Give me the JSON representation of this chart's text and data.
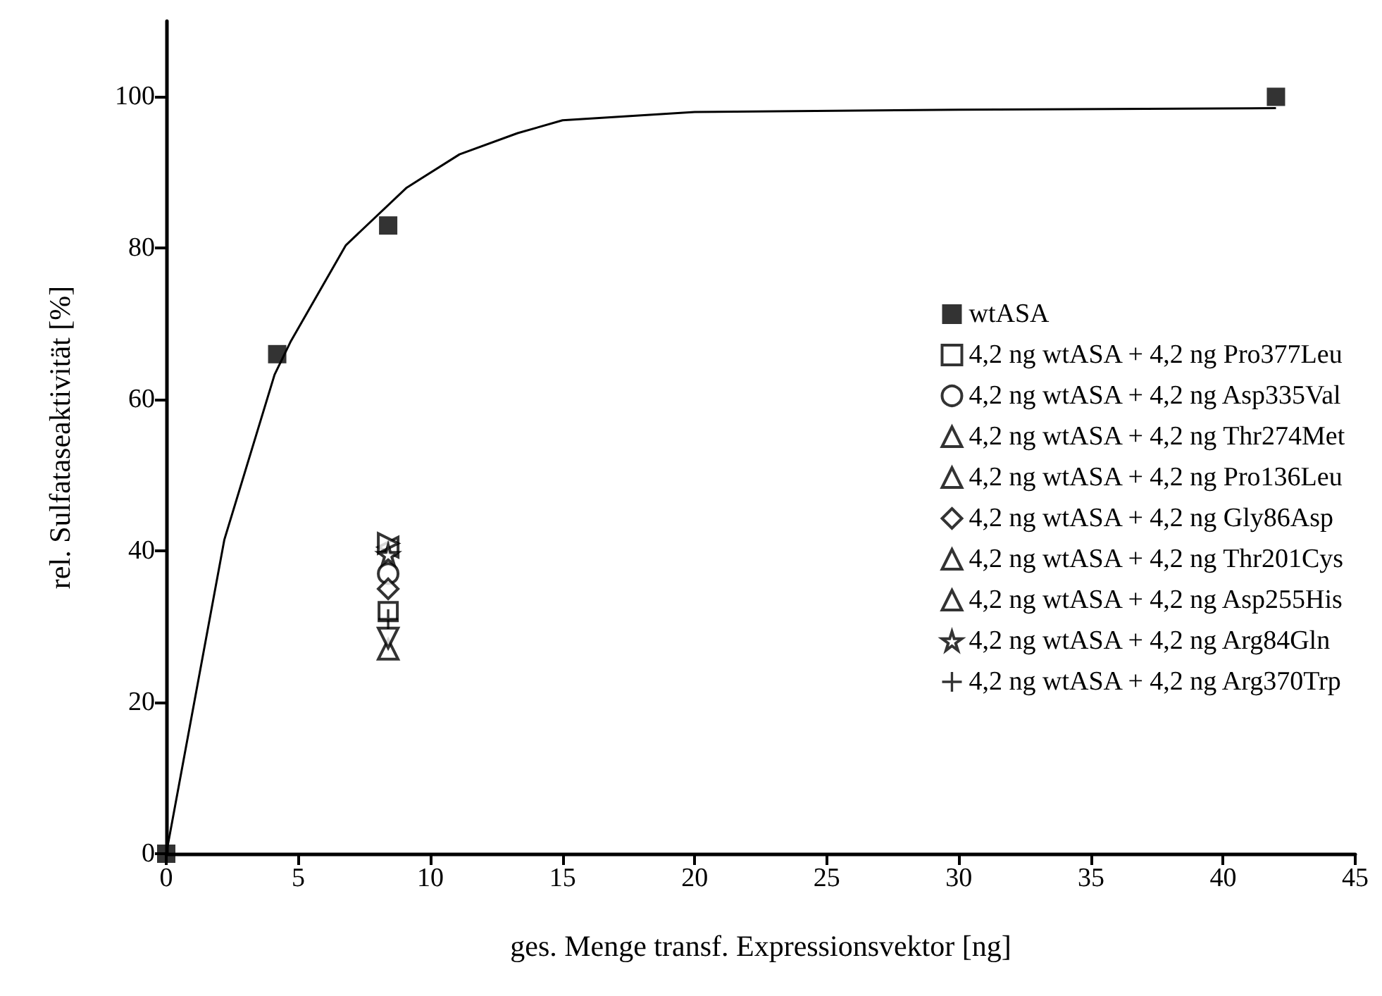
{
  "chart_data": {
    "type": "scatter",
    "xlabel": "ges. Menge transf. Expressionsvektor [ng]",
    "ylabel": "rel. Sulfataseaktivität [%]",
    "xlim": [
      0,
      45
    ],
    "xticks": [
      0,
      5,
      10,
      15,
      20,
      25,
      30,
      35,
      40,
      45
    ],
    "ylim": [
      0,
      110
    ],
    "yticks": [
      0,
      20,
      40,
      60,
      80,
      100
    ],
    "grid": false,
    "legend": "right",
    "series": [
      {
        "type": "line",
        "marker": "none",
        "line_style": "solid",
        "color": "#000000",
        "x": [
          0,
          2.2,
          4.1,
          4.7,
          6.8,
          9.1,
          11.1,
          13.3,
          15,
          20,
          30,
          42
        ],
        "values": [
          0,
          41.5,
          63.3,
          67.6,
          80.4,
          88,
          92.4,
          95.2,
          96.9,
          98,
          98.3,
          98.5
        ]
      },
      {
        "name": "wtASA",
        "marker": "square",
        "color": "#000000",
        "x": [
          0,
          4.2,
          8.4,
          42
        ],
        "values": [
          0,
          66,
          83,
          100
        ]
      },
      {
        "name": "4,2 ng wtASA + 4,2 ng Pro377Leu",
        "marker": "square-open",
        "color": "#000000",
        "x": [
          8.4
        ],
        "values": [
          32
        ]
      },
      {
        "name": "4,2 ng wtASA + 4,2 ng Asp335Val",
        "marker": "circle-open",
        "color": "#000000",
        "x": [
          8.4
        ],
        "values": [
          37
        ]
      },
      {
        "name": "4,2 ng wtASA + 4,2 ng Thr274Met",
        "marker": "triangle-open",
        "color": "#000000",
        "x": [
          8.4
        ],
        "values": [
          27
        ]
      },
      {
        "name": "4,2 ng wtASA + 4,2 ng Pro136Leu",
        "marker": "triangle-down-open",
        "color": "#000000",
        "x": [
          8.4
        ],
        "values": [
          28.5
        ]
      },
      {
        "name": "4,2 ng wtASA + 4,2 ng Gly86Asp",
        "marker": "diamond-open",
        "color": "#000000",
        "x": [
          8.4
        ],
        "values": [
          35
        ]
      },
      {
        "name": "4,2 ng wtASA + 4,2 ng Thr201Cys",
        "marker": "triangle-left-open",
        "color": "#000000",
        "x": [
          8.4
        ],
        "values": [
          40.5
        ]
      },
      {
        "name": "4,2 ng wtASA + 4,2 ng Asp255His",
        "marker": "triangle-right-open",
        "color": "#000000",
        "x": [
          8.4
        ],
        "values": [
          41
        ]
      },
      {
        "name": "4,2 ng wtASA + 4,2 ng Arg84Gln",
        "marker": "star-open",
        "color": "#000000",
        "x": [
          8.4
        ],
        "values": [
          39.5
        ]
      },
      {
        "name": "4,2 ng wtASA + 4,2 ng Arg370Trp",
        "marker": "cross",
        "color": "#000000",
        "x": [
          8.4
        ],
        "values": [
          31
        ]
      }
    ]
  }
}
